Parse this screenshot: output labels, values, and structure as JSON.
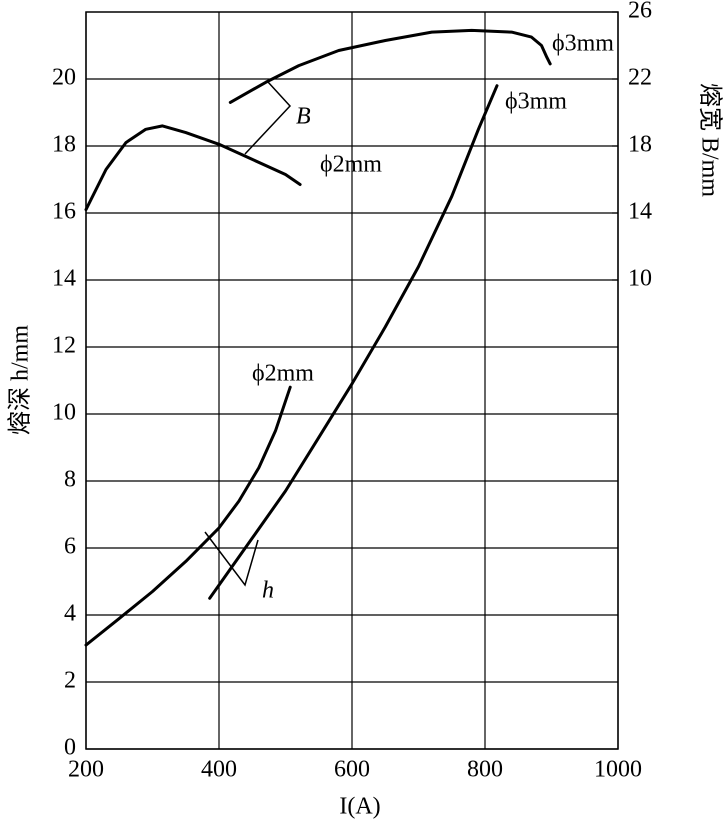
{
  "chart_data": {
    "type": "line",
    "xlabel": "I(A)",
    "ylabel": "熔深 h/mm",
    "y2label": "熔宽 B/mm",
    "xlim": [
      200,
      1000
    ],
    "xticks": [
      200,
      400,
      600,
      800,
      1000
    ],
    "ylim": [
      0,
      22
    ],
    "yticks": [
      0,
      2,
      4,
      6,
      8,
      10,
      12,
      14,
      16,
      18,
      20
    ],
    "y2lim": [
      -18,
      26
    ],
    "y2ticks": [
      10,
      14,
      18,
      22,
      26
    ],
    "grid": true,
    "series": [
      {
        "name": "ϕ2mm",
        "color": "#000000",
        "axis": "y",
        "x": [
          200,
          250,
          300,
          350,
          400,
          430,
          460,
          485,
          507
        ],
        "values": [
          3.1,
          3.9,
          4.7,
          5.6,
          6.6,
          7.4,
          8.4,
          9.5,
          10.8
        ]
      },
      {
        "name": "ϕ3mm",
        "color": "#000000",
        "axis": "y",
        "x": [
          386,
          450,
          500,
          550,
          600,
          650,
          700,
          750,
          790,
          818
        ],
        "values": [
          4.5,
          6.3,
          7.7,
          9.3,
          10.9,
          12.6,
          14.4,
          16.5,
          18.5,
          19.8
        ]
      },
      {
        "name": "ϕ2mm",
        "color": "#000000",
        "axis": "y2",
        "x": [
          200,
          230,
          260,
          290,
          315,
          350,
          400,
          450,
          500,
          522
        ],
        "values": [
          14.2,
          16.6,
          18.2,
          19.0,
          19.2,
          18.8,
          18.1,
          17.2,
          16.3,
          15.7
        ]
      },
      {
        "name": "ϕ3mm",
        "color": "#000000",
        "axis": "y2",
        "x": [
          417,
          470,
          520,
          580,
          650,
          720,
          780,
          840,
          870,
          885,
          893,
          898
        ],
        "values": [
          20.6,
          21.8,
          22.8,
          23.7,
          24.3,
          24.8,
          24.9,
          24.8,
          24.5,
          24.0,
          23.3,
          22.9
        ]
      }
    ],
    "annotations": [
      "B",
      "h"
    ]
  }
}
